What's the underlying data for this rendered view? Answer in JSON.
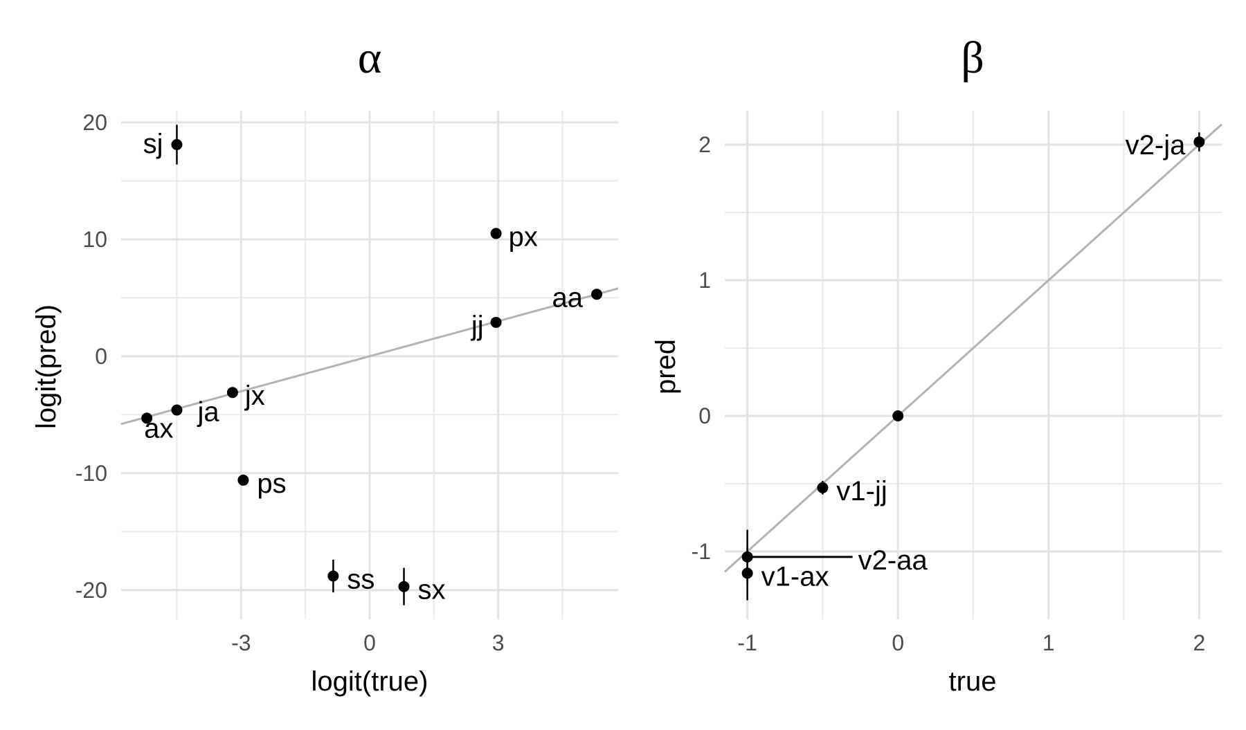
{
  "chart_data": [
    {
      "type": "scatter",
      "title": "α",
      "xlabel": "logit(true)",
      "ylabel": "logit(pred)",
      "xlim": [
        -5.8,
        5.8
      ],
      "ylim": [
        -22.5,
        21
      ],
      "xticks": [
        -3,
        0,
        3
      ],
      "xtick_labels": [
        "-3",
        "0",
        "3"
      ],
      "yticks": [
        -20,
        -10,
        0,
        10,
        20
      ],
      "ytick_labels": [
        "-20",
        "-10",
        "0",
        "10",
        "20"
      ],
      "grid": true,
      "reference_line": {
        "slope": 1,
        "intercept": 0
      },
      "points": [
        {
          "label": "sj",
          "x": -4.5,
          "y": 18.1,
          "err": 1.7
        },
        {
          "label": "px",
          "x": 2.95,
          "y": 10.5,
          "err": 0.3
        },
        {
          "label": "aa",
          "x": 5.3,
          "y": 5.3,
          "err": 0.3
        },
        {
          "label": "jj",
          "x": 2.95,
          "y": 2.9,
          "err": 0.3
        },
        {
          "label": "jx",
          "x": -3.2,
          "y": -3.1,
          "err": 0.3
        },
        {
          "label": "ja",
          "x": -4.5,
          "y": -4.6,
          "err": 0.3
        },
        {
          "label": "ax",
          "x": -5.2,
          "y": -5.3,
          "err": 0.3
        },
        {
          "label": "ps",
          "x": -2.95,
          "y": -10.6,
          "err": 0.3
        },
        {
          "label": "ss",
          "x": -0.85,
          "y": -18.8,
          "err": 1.4
        },
        {
          "label": "sx",
          "x": 0.8,
          "y": -19.7,
          "err": 1.6
        }
      ]
    },
    {
      "type": "scatter",
      "title": "β",
      "xlabel": "true",
      "ylabel": "pred",
      "xlim": [
        -1.15,
        2.15
      ],
      "ylim": [
        -1.5,
        2.25
      ],
      "xticks": [
        -1,
        0,
        1,
        2
      ],
      "xtick_labels": [
        "-1",
        "0",
        "1",
        "2"
      ],
      "yticks": [
        -1,
        0,
        1,
        2
      ],
      "ytick_labels": [
        "-1",
        "0",
        "1",
        "2"
      ],
      "grid": true,
      "reference_line": {
        "slope": 1,
        "intercept": 0
      },
      "points": [
        {
          "label": "v2-ja",
          "x": 2.0,
          "y": 2.02,
          "err": 0.07
        },
        {
          "label": "",
          "x": 0.0,
          "y": 0.0,
          "err": 0.02
        },
        {
          "label": "v1-jj",
          "x": -0.5,
          "y": -0.53,
          "err": 0.05
        },
        {
          "label": "v2-aa",
          "x": -1.0,
          "y": -1.04,
          "err": 0.2
        },
        {
          "label": "v1-ax",
          "x": -1.0,
          "y": -1.16,
          "err": 0.2
        }
      ]
    }
  ]
}
